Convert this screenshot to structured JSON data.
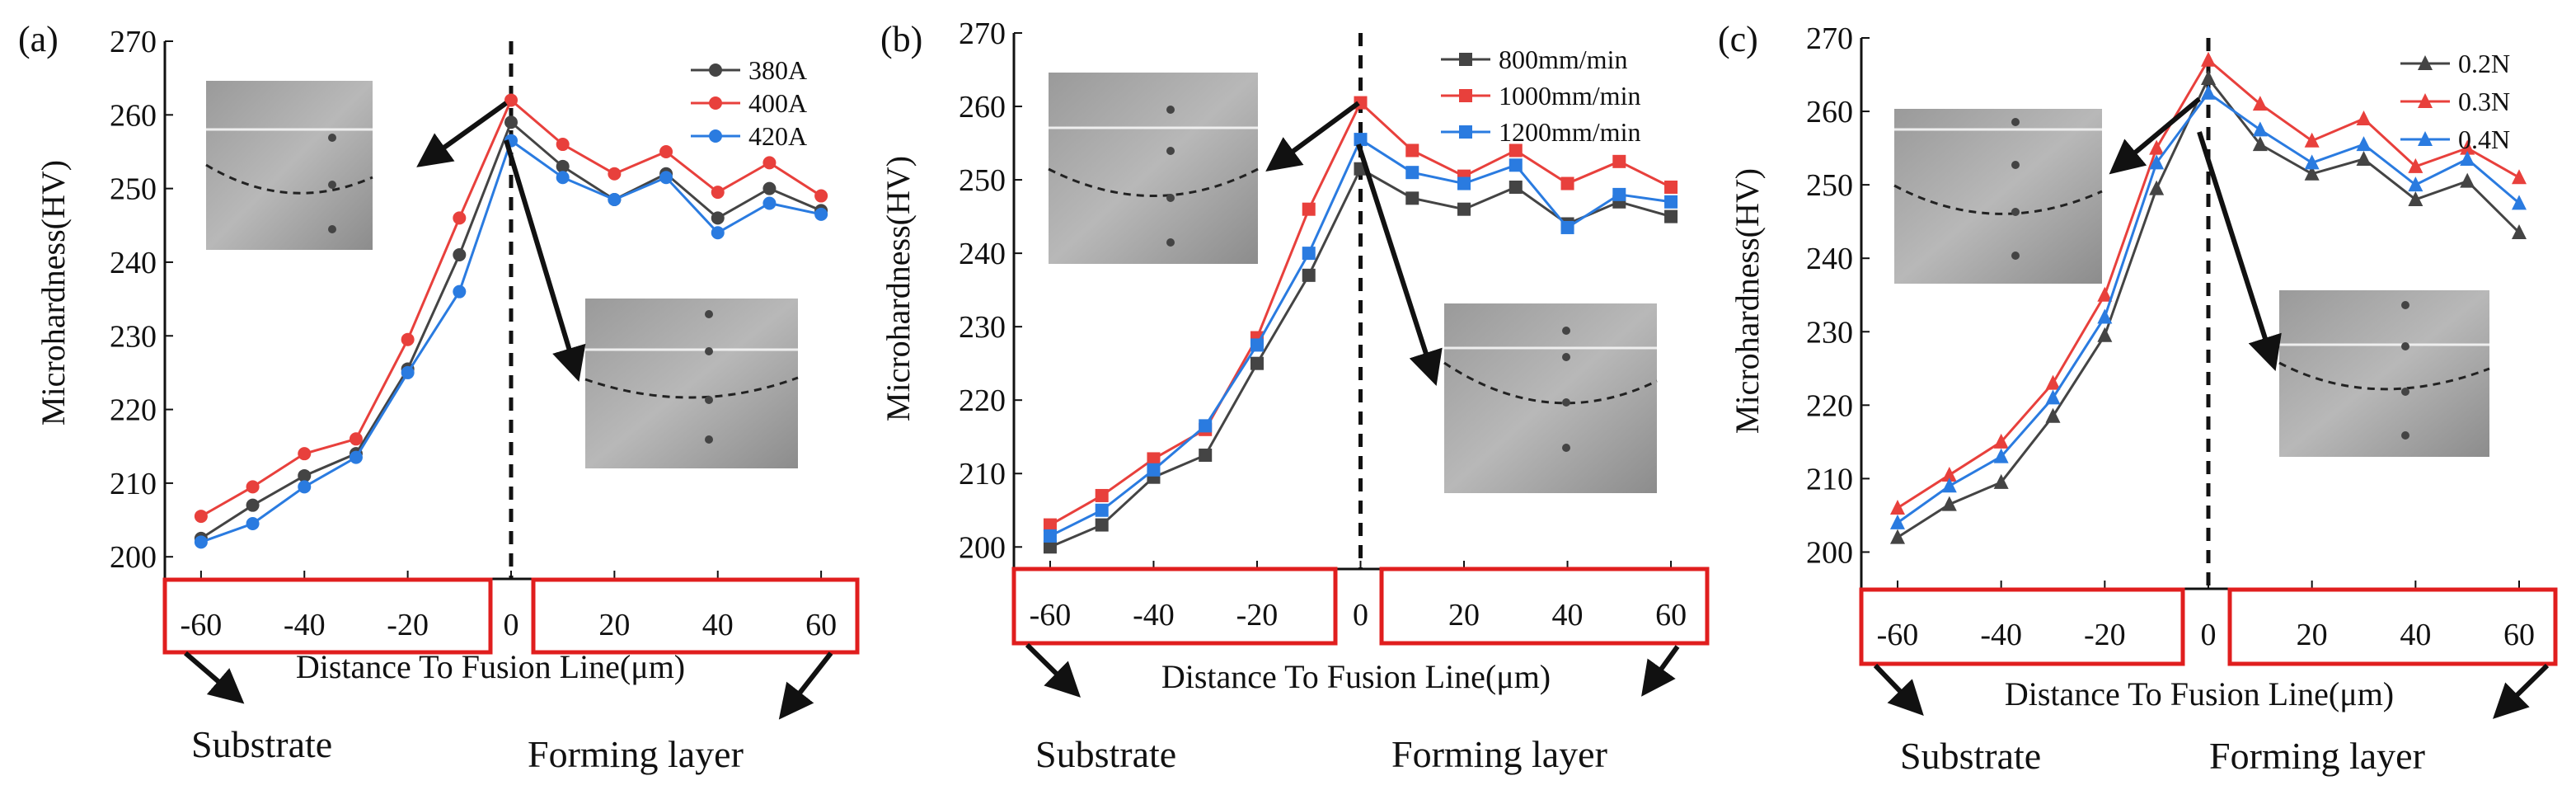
{
  "figure": {
    "caption_regions": {
      "substrate": "Substrate",
      "forming": "Forming layer"
    }
  },
  "chart_data": [
    {
      "type": "line",
      "panel_label": "(a)",
      "title": "",
      "xlabel": "Distance To Fusion Line(μm)",
      "ylabel": "Microhardness(HV)",
      "x": [
        -60,
        -50,
        -40,
        -30,
        -20,
        -10,
        0,
        10,
        20,
        30,
        40,
        50,
        60
      ],
      "xticks": [
        -60,
        -40,
        -20,
        0,
        20,
        40,
        60
      ],
      "yticks": [
        200,
        210,
        220,
        230,
        240,
        250,
        260,
        270
      ],
      "xlim": [
        -67,
        67
      ],
      "ylim": [
        197,
        270
      ],
      "fusion_line_x": 0,
      "region_labels": [
        "Substrate",
        "Forming layer"
      ],
      "legend_position": "top-right",
      "series": [
        {
          "name": "380A",
          "color": "#444444",
          "marker": "circle",
          "values": [
            202.5,
            207,
            211,
            214,
            225.5,
            241,
            259,
            253,
            248.5,
            252,
            246,
            250,
            247
          ]
        },
        {
          "name": "400A",
          "color": "#e8403c",
          "marker": "circle",
          "values": [
            205.5,
            209.5,
            214,
            216,
            229.5,
            246,
            262,
            256,
            252,
            255,
            249.5,
            253.5,
            249
          ]
        },
        {
          "name": "420A",
          "color": "#2a7be0",
          "marker": "circle",
          "values": [
            202,
            204.5,
            209.5,
            213.5,
            225,
            236,
            256.5,
            251.5,
            248.5,
            251.5,
            244,
            248,
            246.5
          ]
        }
      ]
    },
    {
      "type": "line",
      "panel_label": "(b)",
      "title": "",
      "xlabel": "Distance To Fusion Line(μm)",
      "ylabel": "Microhardness(HV)",
      "x": [
        -60,
        -50,
        -40,
        -30,
        -20,
        -10,
        0,
        10,
        20,
        30,
        40,
        50,
        60
      ],
      "xticks": [
        -60,
        -40,
        -20,
        0,
        20,
        40,
        60
      ],
      "yticks": [
        200,
        210,
        220,
        230,
        240,
        250,
        260,
        270
      ],
      "xlim": [
        -67,
        67
      ],
      "ylim": [
        197,
        270
      ],
      "fusion_line_x": 0,
      "region_labels": [
        "Substrate",
        "Forming layer"
      ],
      "legend_position": "top-right",
      "series": [
        {
          "name": "800mm/min",
          "color": "#444444",
          "marker": "square",
          "values": [
            200,
            203,
            209.5,
            212.5,
            225,
            237,
            251.5,
            247.5,
            246,
            249,
            244,
            247,
            245
          ]
        },
        {
          "name": "1000mm/min",
          "color": "#e8403c",
          "marker": "square",
          "values": [
            203,
            207,
            212,
            216,
            228.5,
            246,
            260.5,
            254,
            250.5,
            254,
            249.5,
            252.5,
            249
          ]
        },
        {
          "name": "1200mm/min",
          "color": "#2a7be0",
          "marker": "square",
          "values": [
            201.5,
            205,
            210.5,
            216.5,
            227.5,
            240,
            255.5,
            251,
            249.5,
            252,
            243.5,
            248,
            247
          ]
        }
      ]
    },
    {
      "type": "line",
      "panel_label": "(c)",
      "title": "",
      "xlabel": "Distance To Fusion Line(μm)",
      "ylabel": "Microhardness(HV)",
      "x": [
        -60,
        -50,
        -40,
        -30,
        -20,
        -10,
        0,
        10,
        20,
        30,
        40,
        50,
        60
      ],
      "xticks": [
        -60,
        -40,
        -20,
        0,
        20,
        40,
        60
      ],
      "yticks": [
        200,
        210,
        220,
        230,
        240,
        250,
        260,
        270
      ],
      "xlim": [
        -67,
        67
      ],
      "ylim": [
        195,
        270
      ],
      "fusion_line_x": 0,
      "region_labels": [
        "Substrate",
        "Forming layer"
      ],
      "legend_position": "top-right",
      "series": [
        {
          "name": "0.2N",
          "color": "#444444",
          "marker": "triangle",
          "values": [
            202,
            206.5,
            209.5,
            218.5,
            229.5,
            249.5,
            264.5,
            255.5,
            251.5,
            253.5,
            248,
            250.5,
            243.5
          ]
        },
        {
          "name": "0.3N",
          "color": "#e8403c",
          "marker": "triangle",
          "values": [
            206,
            210.5,
            215,
            223,
            235,
            255,
            267,
            261,
            256,
            259,
            252.5,
            255,
            251
          ]
        },
        {
          "name": "0.4N",
          "color": "#2a7be0",
          "marker": "triangle",
          "values": [
            204,
            209,
            213,
            221,
            232,
            253,
            262.5,
            257.5,
            253,
            255.5,
            250,
            253.5,
            247.5
          ]
        }
      ]
    }
  ]
}
